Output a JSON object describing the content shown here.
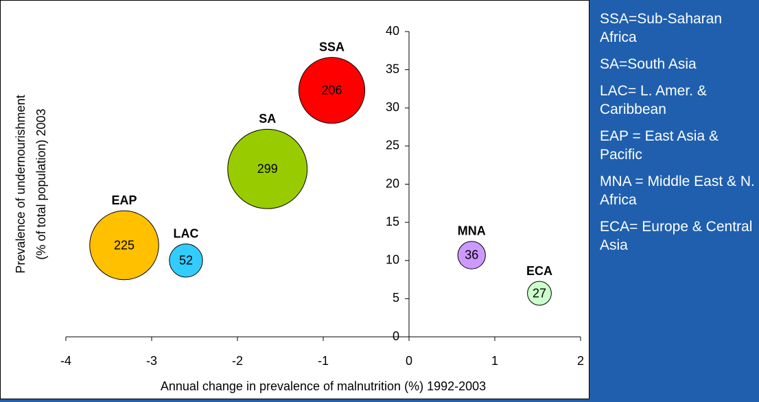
{
  "chart_data": {
    "type": "bubble",
    "x_label": "Annual change in prevalence of malnutrition (%) 1992-2003",
    "y_label": [
      "Prevalence of undernourishment",
      "(% of total population) 2003"
    ],
    "categories": [
      "SSA",
      "SA",
      "EAP",
      "LAC",
      "MNA",
      "ECA"
    ],
    "x": [
      -0.9,
      -1.65,
      -3.32,
      -2.6,
      0.73,
      1.52
    ],
    "values": [
      32.3,
      22,
      12,
      10,
      10.7,
      5.7
    ],
    "sizes": [
      206,
      299,
      225,
      52,
      36,
      27
    ],
    "colors": [
      "#ff0000",
      "#99cc00",
      "#ffc000",
      "#33ccff",
      "#cc99ff",
      "#ccffcc"
    ],
    "xlim": [
      -4,
      2
    ],
    "xticks": [
      -4,
      -3,
      -2,
      -1,
      0,
      1,
      2
    ],
    "ylim": [
      0,
      40
    ],
    "yticks": [
      0,
      5,
      10,
      15,
      20,
      25,
      30,
      35,
      40
    ],
    "notes": [
      "SSA=Sub-Saharan Africa",
      "SA=South Asia",
      "LAC= L. Amer. & Caribbean",
      "EAP = East Asia & Pacific",
      "MNA = Middle East & N. Africa",
      "ECA= Europe & Central Asia"
    ]
  }
}
